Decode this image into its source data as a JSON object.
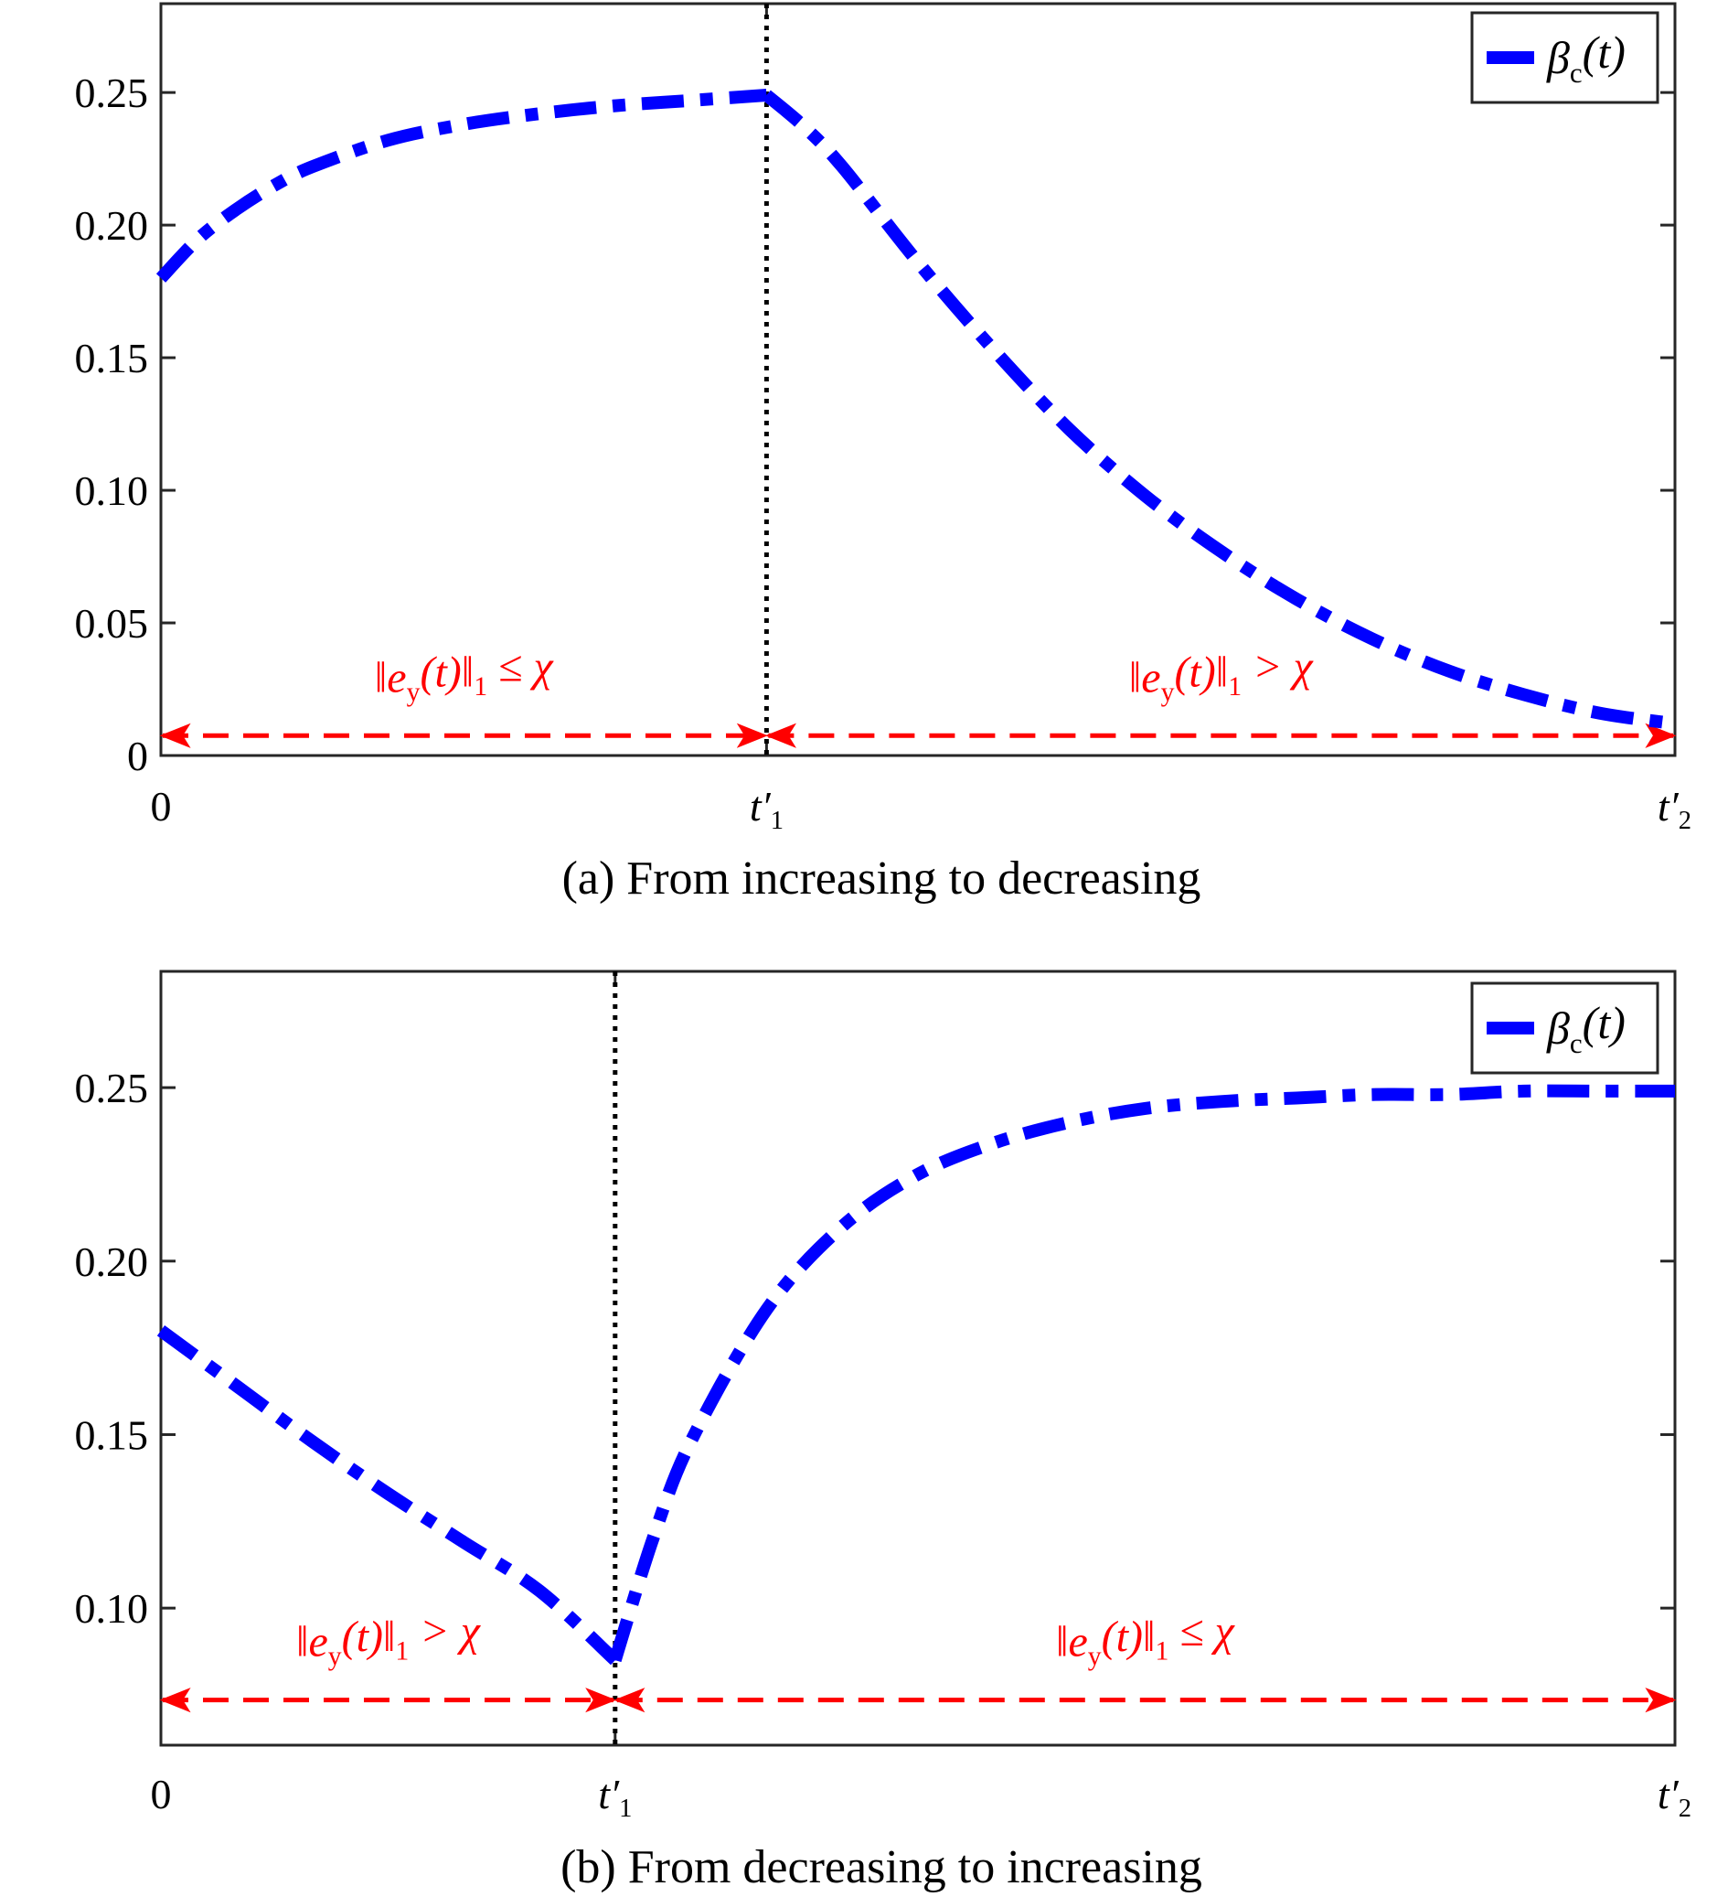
{
  "chart_data": [
    {
      "id": "a",
      "type": "line",
      "caption": "(a) From increasing to decreasing",
      "x_ticks": [
        "0",
        "t′1",
        "t′2"
      ],
      "xlim": [
        0,
        2
      ],
      "ylim": [
        0,
        0.2835
      ],
      "y_ticks": [
        "0",
        "0.05",
        "0.10",
        "0.15",
        "0.20",
        "0.25"
      ],
      "y_tick_values": [
        0,
        0.05,
        0.1,
        0.15,
        0.2,
        0.25
      ],
      "switch_x": 0.8,
      "legend": {
        "label": "βc(t)",
        "position": "top-right"
      },
      "series": [
        {
          "name": "βc(t)",
          "color": "#0000ff",
          "style": "dash-dot",
          "x": [
            0,
            0.05,
            0.1,
            0.15,
            0.2,
            0.3,
            0.4,
            0.5,
            0.6,
            0.7,
            0.8,
            0.85,
            0.9,
            1.0,
            1.1,
            1.2,
            1.3,
            1.4,
            1.5,
            1.6,
            1.7,
            1.8,
            1.9,
            2.0
          ],
          "y": [
            0.18,
            0.195,
            0.206,
            0.215,
            0.222,
            0.232,
            0.238,
            0.242,
            0.245,
            0.247,
            0.249,
            0.237,
            0.222,
            0.186,
            0.153,
            0.123,
            0.098,
            0.077,
            0.059,
            0.044,
            0.032,
            0.023,
            0.016,
            0.012
          ]
        }
      ],
      "regions": [
        {
          "label": "‖ey(t)‖1 ≤ χ",
          "x_start": 0,
          "x_end": 0.8,
          "y": 0.0075
        },
        {
          "label": "‖ey(t)‖1 > χ",
          "x_start": 0.8,
          "x_end": 2.0,
          "y": 0.0075
        }
      ]
    },
    {
      "id": "b",
      "type": "line",
      "caption": "(b) From decreasing to increasing",
      "x_ticks": [
        "0",
        "t′1",
        "t′2"
      ],
      "xlim": [
        0,
        2
      ],
      "ylim": [
        0.0605,
        0.2835
      ],
      "y_ticks": [
        "0.10",
        "0.15",
        "0.20",
        "0.25"
      ],
      "y_tick_values": [
        0.1,
        0.15,
        0.2,
        0.25
      ],
      "switch_x": 0.6,
      "legend": {
        "label": "βc(t)",
        "position": "top-right"
      },
      "series": [
        {
          "name": "βc(t)",
          "color": "#0000ff",
          "style": "dash-dot",
          "x": [
            0,
            0.1,
            0.2,
            0.3,
            0.4,
            0.5,
            0.6,
            0.65,
            0.7,
            0.8,
            0.9,
            1.0,
            1.1,
            1.2,
            1.3,
            1.4,
            1.5,
            1.6,
            1.7,
            1.8,
            1.9,
            2.0
          ],
          "y": [
            0.18,
            0.164,
            0.148,
            0.133,
            0.119,
            0.105,
            0.085,
            0.12,
            0.148,
            0.186,
            0.21,
            0.225,
            0.234,
            0.24,
            0.244,
            0.246,
            0.247,
            0.248,
            0.248,
            0.249,
            0.249,
            0.249
          ]
        }
      ],
      "regions": [
        {
          "label": "‖ey(t)‖1 > χ",
          "x_start": 0,
          "x_end": 0.6,
          "y": 0.0735
        },
        {
          "label": "‖ey(t)‖1 ≤ χ",
          "x_start": 0.6,
          "x_end": 2.0,
          "y": 0.0735
        }
      ]
    }
  ]
}
